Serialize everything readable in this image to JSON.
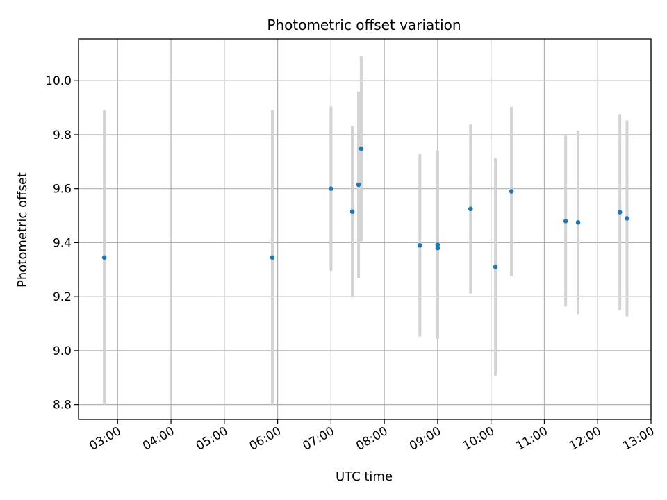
{
  "chart_data": {
    "type": "scatter",
    "title": "Photometric offset variation",
    "xlabel": "UTC time",
    "ylabel": "Photometric offset",
    "x_ticks": [
      "03:00",
      "04:00",
      "05:00",
      "06:00",
      "07:00",
      "08:00",
      "09:00",
      "10:00",
      "11:00",
      "12:00",
      "13:00"
    ],
    "y_ticks": [
      "8.8",
      "9.0",
      "9.2",
      "9.4",
      "9.6",
      "9.8",
      "10.0"
    ],
    "xlim": [
      "02:16",
      "13:00"
    ],
    "ylim": [
      8.745,
      10.155
    ],
    "grid": true,
    "point_color": "#1f77b4",
    "errorbar_color": "#d3d3d3",
    "points": [
      {
        "x": "02:45",
        "y": 9.345,
        "yerr": 0.545
      },
      {
        "x": "05:54",
        "y": 9.345,
        "yerr": 0.545
      },
      {
        "x": "07:00",
        "y": 9.6,
        "yerr": 0.305
      },
      {
        "x": "07:24",
        "y": 9.515,
        "yerr": 0.318
      },
      {
        "x": "07:31",
        "y": 9.615,
        "yerr": 0.345
      },
      {
        "x": "07:34",
        "y": 9.748,
        "yerr": 0.343
      },
      {
        "x": "08:40",
        "y": 9.39,
        "yerr": 0.338
      },
      {
        "x": "09:00",
        "y": 9.392,
        "yerr": 0.348
      },
      {
        "x": "09:00",
        "y": 9.38,
        "yerr": 0.33
      },
      {
        "x": "09:37",
        "y": 9.525,
        "yerr": 0.313
      },
      {
        "x": "10:05",
        "y": 9.31,
        "yerr": 0.403
      },
      {
        "x": "10:23",
        "y": 9.59,
        "yerr": 0.313
      },
      {
        "x": "11:24",
        "y": 9.48,
        "yerr": 0.317
      },
      {
        "x": "11:38",
        "y": 9.475,
        "yerr": 0.34
      },
      {
        "x": "12:25",
        "y": 9.513,
        "yerr": 0.363
      },
      {
        "x": "12:33",
        "y": 9.49,
        "yerr": 0.363
      }
    ]
  }
}
